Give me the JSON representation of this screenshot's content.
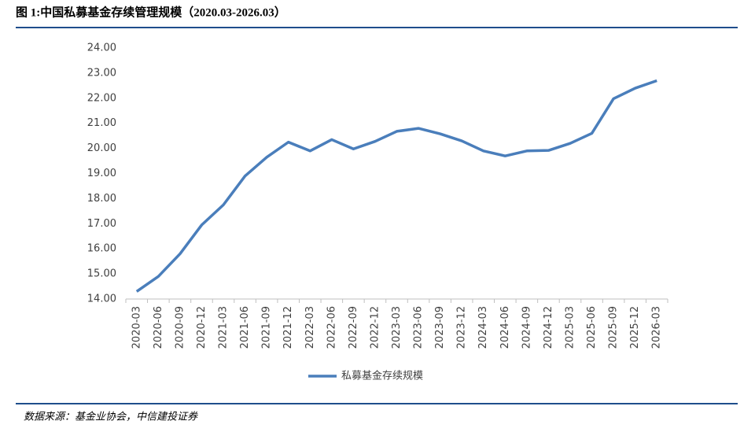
{
  "chart_data": {
    "type": "line",
    "title": "图 1:中国私募基金存续管理规模（2020.03-2026.03）",
    "source": "数据来源：基金业协会，中信建投证券",
    "categories": [
      "2020-03",
      "2020-06",
      "2020-09",
      "2020-12",
      "2021-03",
      "2021-06",
      "2021-09",
      "2021-12",
      "2022-03",
      "2022-06",
      "2022-09",
      "2022-12",
      "2023-03",
      "2023-06",
      "2023-09",
      "2023-12",
      "2024-03",
      "2024-06",
      "2024-09",
      "2024-12",
      "2025-03",
      "2025-06",
      "2025-09",
      "2025-12",
      "2026-03"
    ],
    "series": [
      {
        "name": "私募基金存续规模",
        "color": "#4a7ebb",
        "values": [
          14.3,
          14.9,
          15.8,
          16.95,
          17.75,
          18.9,
          19.65,
          20.25,
          19.9,
          20.35,
          19.98,
          20.28,
          20.68,
          20.8,
          20.58,
          20.3,
          19.9,
          19.7,
          19.9,
          19.92,
          20.2,
          20.6,
          21.98,
          22.4,
          22.7
        ]
      }
    ],
    "ylim": [
      14,
      24
    ],
    "yticks": [
      {
        "value": 14,
        "label": "14.00"
      },
      {
        "value": 15,
        "label": "15.00"
      },
      {
        "value": 16,
        "label": "16.00"
      },
      {
        "value": 17,
        "label": "17.00"
      },
      {
        "value": 18,
        "label": "18.00"
      },
      {
        "value": 19,
        "label": "19.00"
      },
      {
        "value": 20,
        "label": "20.00"
      },
      {
        "value": 21,
        "label": "21.00"
      },
      {
        "value": 22,
        "label": "22.00"
      },
      {
        "value": 23,
        "label": "23.00"
      },
      {
        "value": 24,
        "label": "24.00"
      }
    ],
    "grid": false,
    "legend": "bottom"
  }
}
